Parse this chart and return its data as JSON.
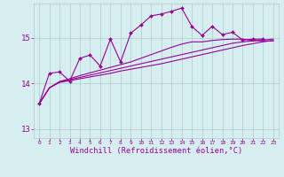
{
  "background_color": "#d6eef0",
  "line_color": "#990099",
  "grid_color": "#aacccc",
  "xlabel": "Windchill (Refroidissement éolien,°C)",
  "xlabel_color": "#990099",
  "ylim": [
    12.8,
    15.75
  ],
  "yticks": [
    13,
    14,
    15
  ],
  "xlim": [
    -0.5,
    23.5
  ],
  "xticks": [
    0,
    1,
    2,
    3,
    4,
    5,
    6,
    7,
    8,
    9,
    10,
    11,
    12,
    13,
    14,
    15,
    16,
    17,
    18,
    19,
    20,
    21,
    22,
    23
  ],
  "s1": [
    13.55,
    14.22,
    14.25,
    14.05,
    14.55,
    14.62,
    14.38,
    14.97,
    14.47,
    15.1,
    15.28,
    15.48,
    15.52,
    15.58,
    15.65,
    15.25,
    15.05,
    15.25,
    15.07,
    15.12,
    14.95,
    14.97,
    14.97,
    null
  ],
  "s2": [
    13.55,
    13.9,
    14.02,
    14.06,
    14.1,
    14.14,
    14.18,
    14.22,
    14.27,
    14.31,
    14.35,
    14.39,
    14.43,
    14.48,
    14.53,
    14.58,
    14.63,
    14.68,
    14.73,
    14.78,
    14.83,
    14.87,
    14.91,
    14.94
  ],
  "s3": [
    13.55,
    13.9,
    14.03,
    14.08,
    14.13,
    14.18,
    14.23,
    14.28,
    14.33,
    14.38,
    14.43,
    14.48,
    14.53,
    14.58,
    14.63,
    14.68,
    14.73,
    14.78,
    14.83,
    14.88,
    14.91,
    14.93,
    14.95,
    14.97
  ],
  "s4": [
    13.55,
    13.9,
    14.04,
    14.1,
    14.17,
    14.23,
    14.29,
    14.35,
    14.41,
    14.47,
    14.55,
    14.63,
    14.71,
    14.79,
    14.86,
    14.91,
    14.91,
    14.94,
    14.96,
    14.97,
    14.97,
    14.94,
    14.93,
    14.93
  ]
}
